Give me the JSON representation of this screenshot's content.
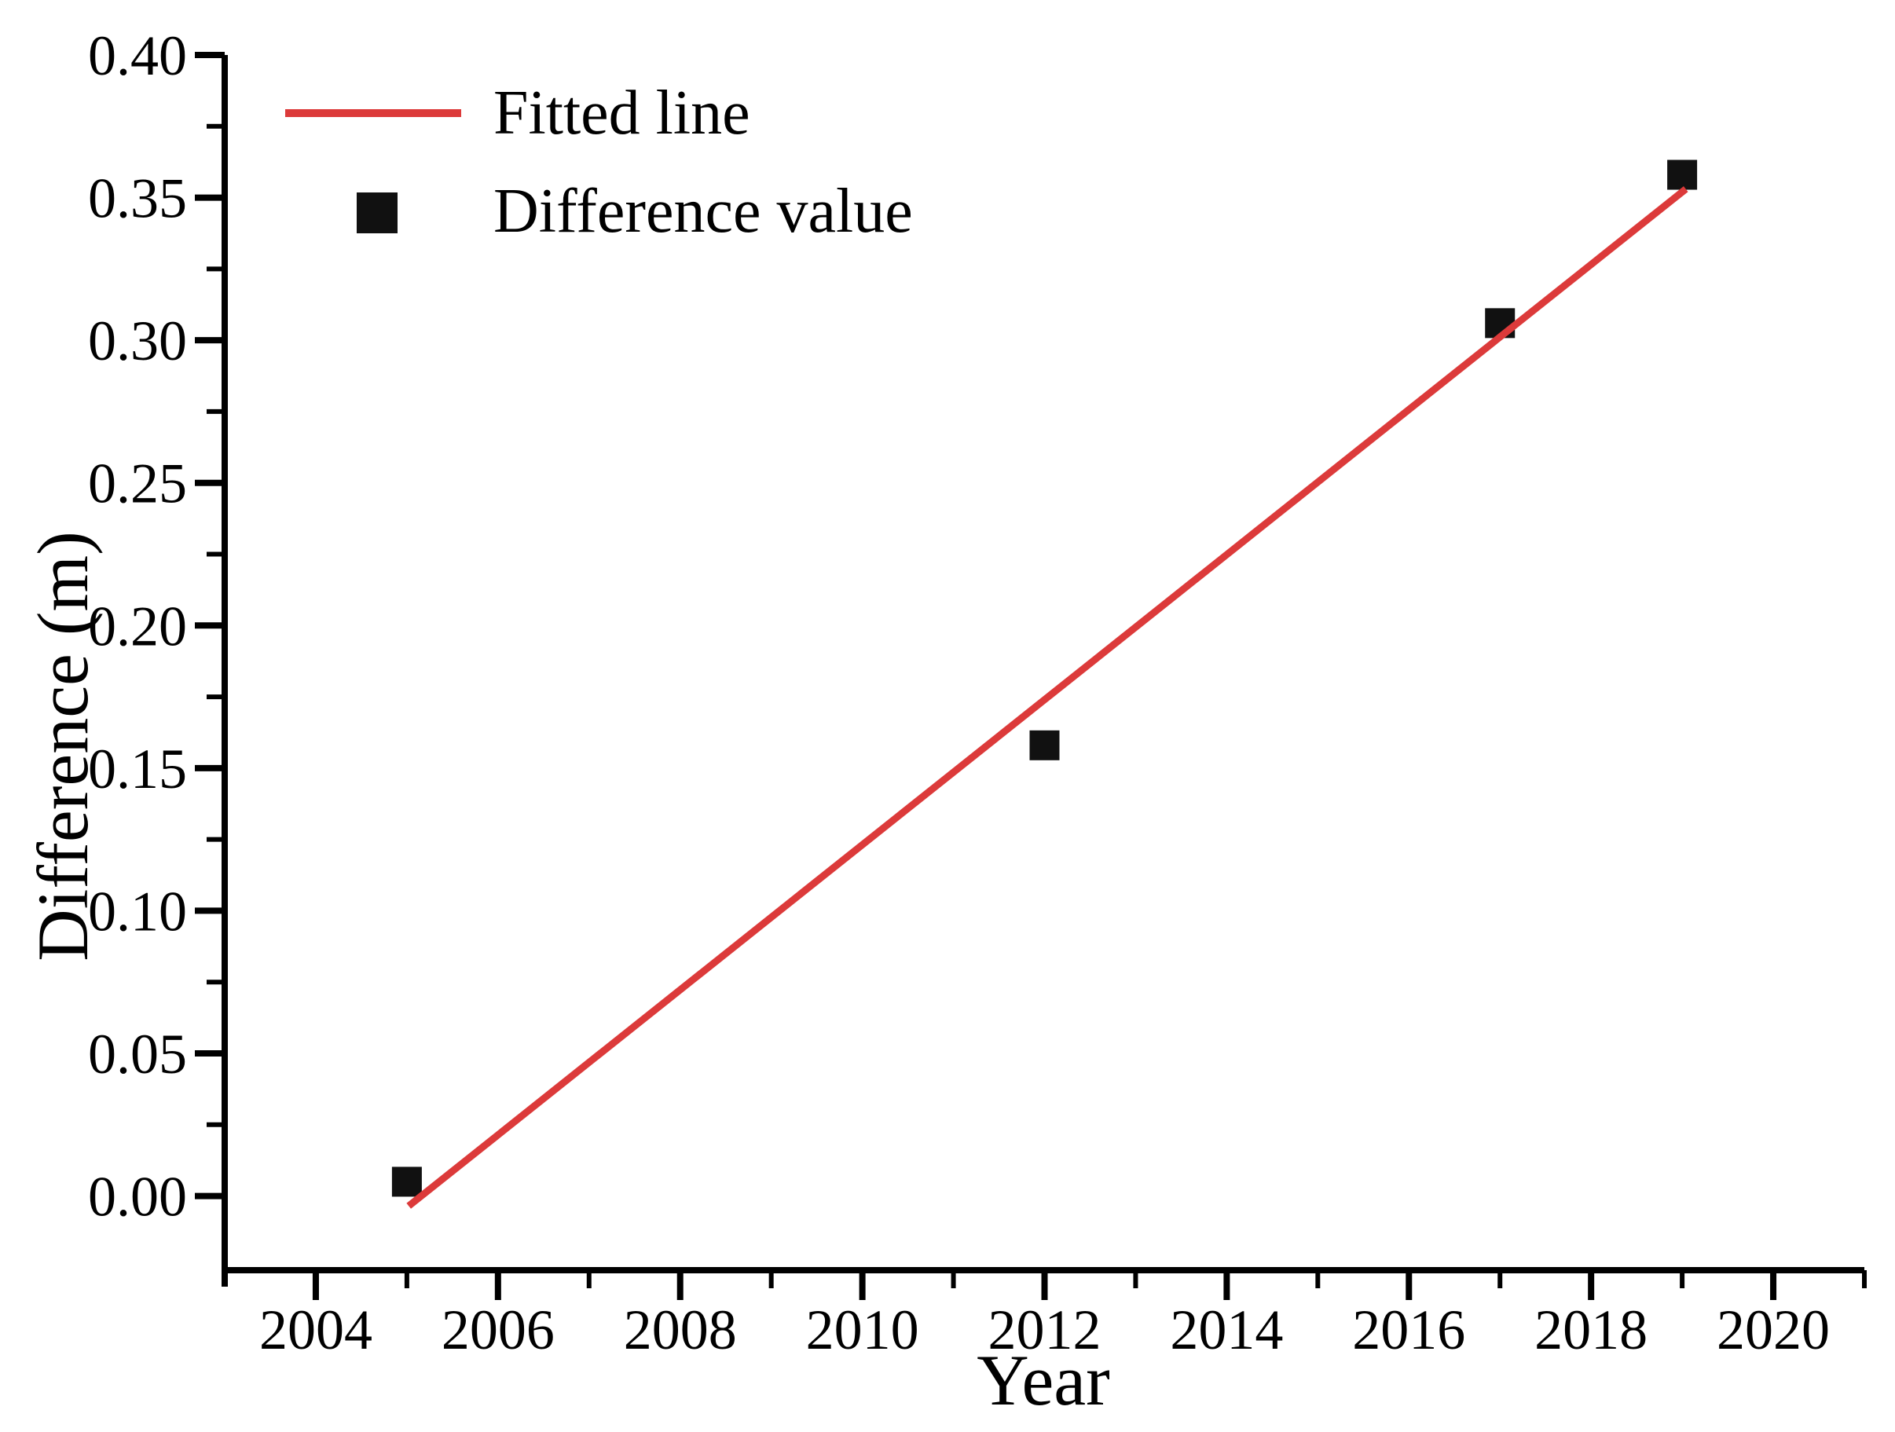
{
  "figure": {
    "background": "#ffffff"
  },
  "chart_data": {
    "type": "scatter",
    "title": "",
    "xlabel": "Year",
    "ylabel": "Difference (m)",
    "xlim": [
      2003,
      2021
    ],
    "ylim": [
      -0.026,
      0.4
    ],
    "grid": false,
    "x_major_ticks": [
      2004,
      2006,
      2008,
      2010,
      2012,
      2014,
      2016,
      2018,
      2020
    ],
    "x_minor_ticks": [
      2005,
      2007,
      2009,
      2011,
      2013,
      2015,
      2017,
      2019,
      2021
    ],
    "y_major_ticks": [
      0.0,
      0.05,
      0.1,
      0.15,
      0.2,
      0.25,
      0.3,
      0.35,
      0.4
    ],
    "y_major_tick_labels": [
      "0.00",
      "0.05",
      "0.10",
      "0.15",
      "0.20",
      "0.25",
      "0.30",
      "0.35",
      "0.40"
    ],
    "y_minor_ticks": [
      0.025,
      0.075,
      0.125,
      0.175,
      0.225,
      0.275,
      0.325,
      0.375
    ],
    "series": [
      {
        "name": "Difference value",
        "type": "scatter",
        "marker": "square",
        "color": "#111111",
        "points": [
          {
            "x": 2005,
            "y": 0.005
          },
          {
            "x": 2012,
            "y": 0.158
          },
          {
            "x": 2017,
            "y": 0.306
          },
          {
            "x": 2019,
            "y": 0.358
          }
        ]
      },
      {
        "name": "Fitted line",
        "type": "line",
        "color": "#dc3a3a",
        "points": [
          {
            "x": 2005.02,
            "y": -0.0035
          },
          {
            "x": 2019.04,
            "y": 0.353
          }
        ]
      }
    ],
    "legend": {
      "position": "top-left-inside",
      "entries": [
        {
          "label": "Fitted line",
          "symbol": "line",
          "color": "#dc3a3a"
        },
        {
          "label": "Difference value",
          "symbol": "square",
          "color": "#111111"
        }
      ]
    },
    "axis_color": "#000000"
  }
}
